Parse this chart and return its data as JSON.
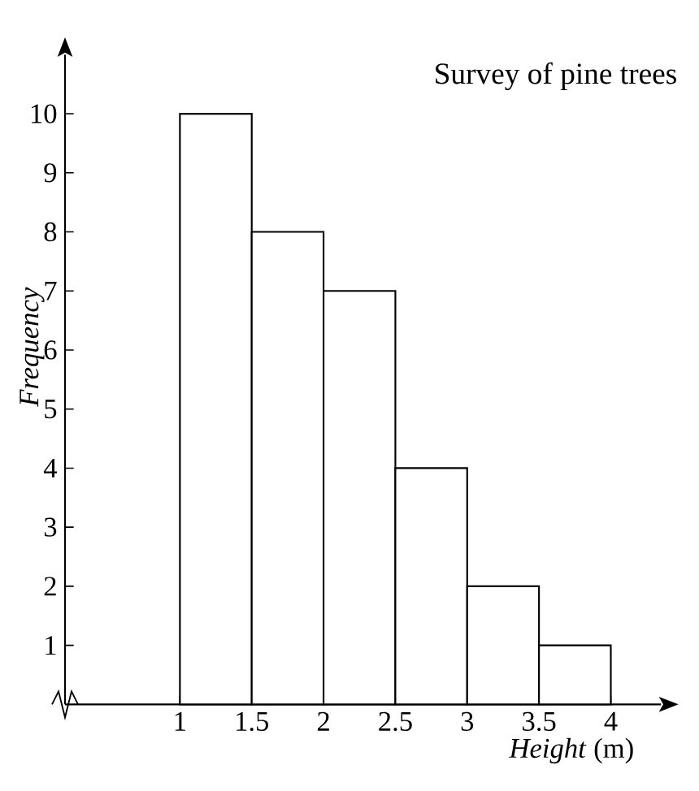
{
  "chart_data": {
    "type": "histogram",
    "title": "Survey of pine trees",
    "xlabel": "*Height* (m)",
    "ylabel": "Frequency",
    "bins": [
      1,
      1.5,
      2,
      2.5,
      3,
      3.5,
      4
    ],
    "values": [
      10,
      8,
      7,
      4,
      2,
      1
    ],
    "color": "#ffffff",
    "xlim": [
      0.2,
      4.35
    ],
    "ylim": [
      0,
      11
    ],
    "xticks": [
      1,
      1.5,
      2,
      2.5,
      3,
      3.5,
      4
    ],
    "yticks": [
      1,
      2,
      3,
      4,
      5,
      6,
      7,
      8,
      9,
      10
    ],
    "grid": false
  }
}
